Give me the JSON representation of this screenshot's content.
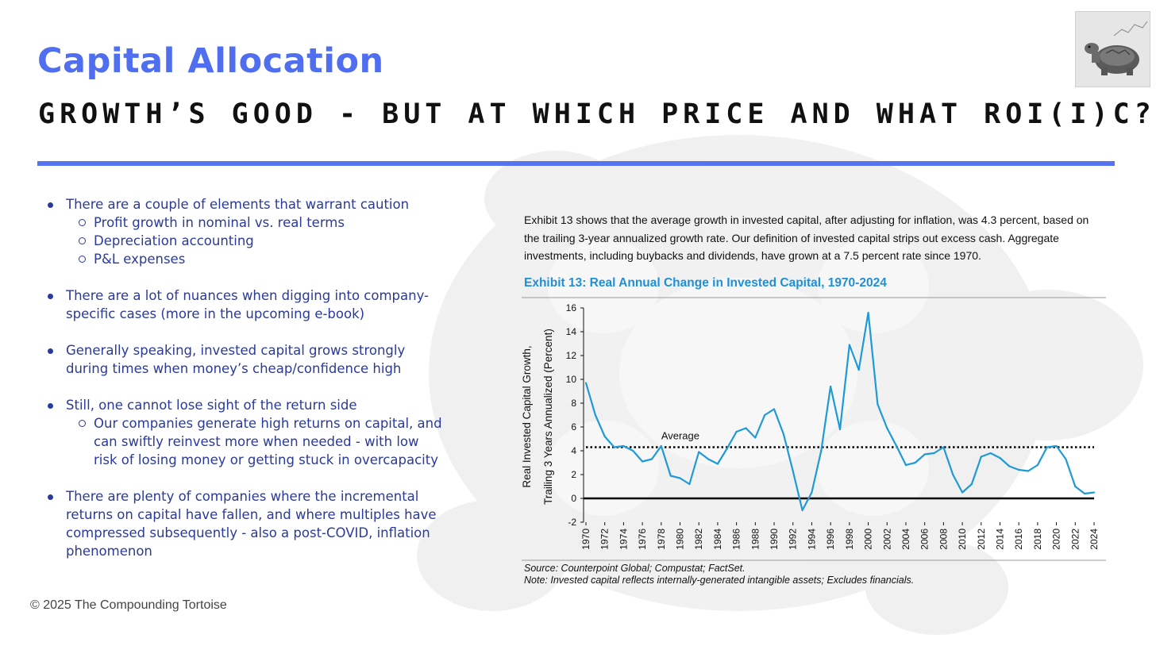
{
  "slide": {
    "title": "Capital Allocation",
    "subtitle": "GROWTH’S GOOD - BUT AT WHICH PRICE AND WHAT ROI(I)C?",
    "accent_color": "#4f6ef0",
    "copyright": "© 2025 The Compounding Tortoise",
    "logo_icon": "tortoise-icon"
  },
  "bullets": [
    {
      "text": "There are a couple of elements that warrant caution",
      "sub": [
        "Profit growth in nominal vs. real terms",
        "Depreciation accounting",
        "P&L expenses"
      ]
    },
    {
      "text": "There are a lot of nuances when digging into company-specific cases (more in the upcoming e-book)",
      "sub": []
    },
    {
      "text": "Generally speaking, invested capital grows strongly during times when money’s cheap/confidence high",
      "sub": []
    },
    {
      "text": "Still, one cannot lose sight of the return side",
      "sub": [
        "Our companies generate high returns on capital, and can swiftly reinvest more when needed - with low risk of losing money or getting stuck in overcapacity"
      ]
    },
    {
      "text": "There are plenty of companies where the incremental returns on capital have fallen, and where multiples have compressed subsequently - also a post-COVID, inflation phenomenon",
      "sub": []
    }
  ],
  "exhibit": {
    "intro": "Exhibit 13 shows that the average growth in invested capital, after adjusting for inflation, was 4.3 percent, based on the trailing 3-year annualized growth rate. Our definition of invested capital strips out excess cash. Aggregate investments, including buybacks and dividends, have grown at a 7.5 percent rate since 1970.",
    "title": "Exhibit 13: Real Annual Change in Invested Capital, 1970-2024",
    "source": "Source: Counterpoint Global; Compustat; FactSet.",
    "note": "Note: Invested capital reflects internally-generated intangible assets; Excludes financials."
  },
  "chart_data": {
    "type": "line",
    "title": "Exhibit 13: Real Annual Change in Invested Capital, 1970-2024",
    "ylabel_line1": "Real Invested Capital Growth,",
    "ylabel_line2": "Trailing 3 Years Annualized (Percent)",
    "xlabel": "",
    "ylim": [
      -2,
      16
    ],
    "yticks": [
      -2,
      0,
      2,
      4,
      6,
      8,
      10,
      12,
      14,
      16
    ],
    "xlim": [
      1970,
      2024
    ],
    "xticks": [
      1970,
      1972,
      1974,
      1976,
      1978,
      1980,
      1982,
      1984,
      1986,
      1988,
      1990,
      1992,
      1994,
      1996,
      1998,
      2000,
      2002,
      2004,
      2006,
      2008,
      2010,
      2012,
      2014,
      2016,
      2018,
      2020,
      2022,
      2024
    ],
    "line_color": "#1f9ad6",
    "x": [
      1970,
      1971,
      1972,
      1973,
      1974,
      1975,
      1976,
      1977,
      1978,
      1979,
      1980,
      1981,
      1982,
      1983,
      1984,
      1985,
      1986,
      1987,
      1988,
      1989,
      1990,
      1991,
      1992,
      1993,
      1994,
      1995,
      1996,
      1997,
      1998,
      1999,
      2000,
      2001,
      2002,
      2003,
      2004,
      2005,
      2006,
      2007,
      2008,
      2009,
      2010,
      2011,
      2012,
      2013,
      2014,
      2015,
      2016,
      2017,
      2018,
      2019,
      2020,
      2021,
      2022,
      2023,
      2024
    ],
    "values": [
      9.7,
      7.0,
      5.2,
      4.3,
      4.4,
      4.0,
      3.1,
      3.3,
      4.4,
      1.9,
      1.7,
      1.2,
      3.9,
      3.3,
      2.9,
      4.2,
      5.6,
      5.9,
      5.1,
      7.0,
      7.5,
      5.4,
      2.3,
      -1.0,
      0.5,
      4.0,
      9.4,
      5.8,
      12.9,
      10.8,
      15.6,
      7.9,
      5.9,
      4.4,
      2.8,
      3.0,
      3.7,
      3.8,
      4.3,
      2.0,
      0.5,
      1.2,
      3.5,
      3.8,
      3.4,
      2.7,
      2.4,
      2.3,
      2.8,
      4.3,
      4.4,
      3.3,
      1.0,
      0.4,
      0.5
    ],
    "average": 4.3,
    "average_label": "Average",
    "grid": false,
    "legend": "none"
  }
}
